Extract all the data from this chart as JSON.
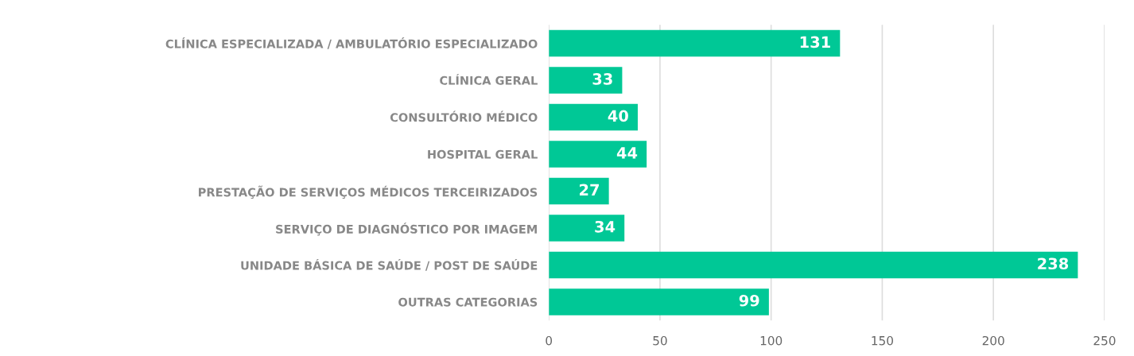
{
  "chart_data": {
    "type": "bar",
    "orientation": "horizontal",
    "categories": [
      "CLÍNICA ESPECIALIZADA / AMBULATÓRIO ESPECIALIZADO",
      "CLÍNICA GERAL",
      "CONSULTÓRIO MÉDICO",
      "HOSPITAL GERAL",
      "PRESTAÇÃO DE SERVIÇOS MÉDICOS TERCEIRIZADOS",
      "SERVIÇO DE DIAGNÓSTICO POR IMAGEM",
      "UNIDADE BÁSICA DE SAÚDE / POST DE SAÚDE",
      "OUTRAS CATEGORIAS"
    ],
    "values": [
      131,
      33,
      40,
      44,
      27,
      34,
      238,
      99
    ],
    "color": "#00c896",
    "xlim": [
      0,
      250
    ],
    "xticks": [
      0,
      50,
      100,
      150,
      200,
      250
    ],
    "grid": "x",
    "data_labels": true
  }
}
